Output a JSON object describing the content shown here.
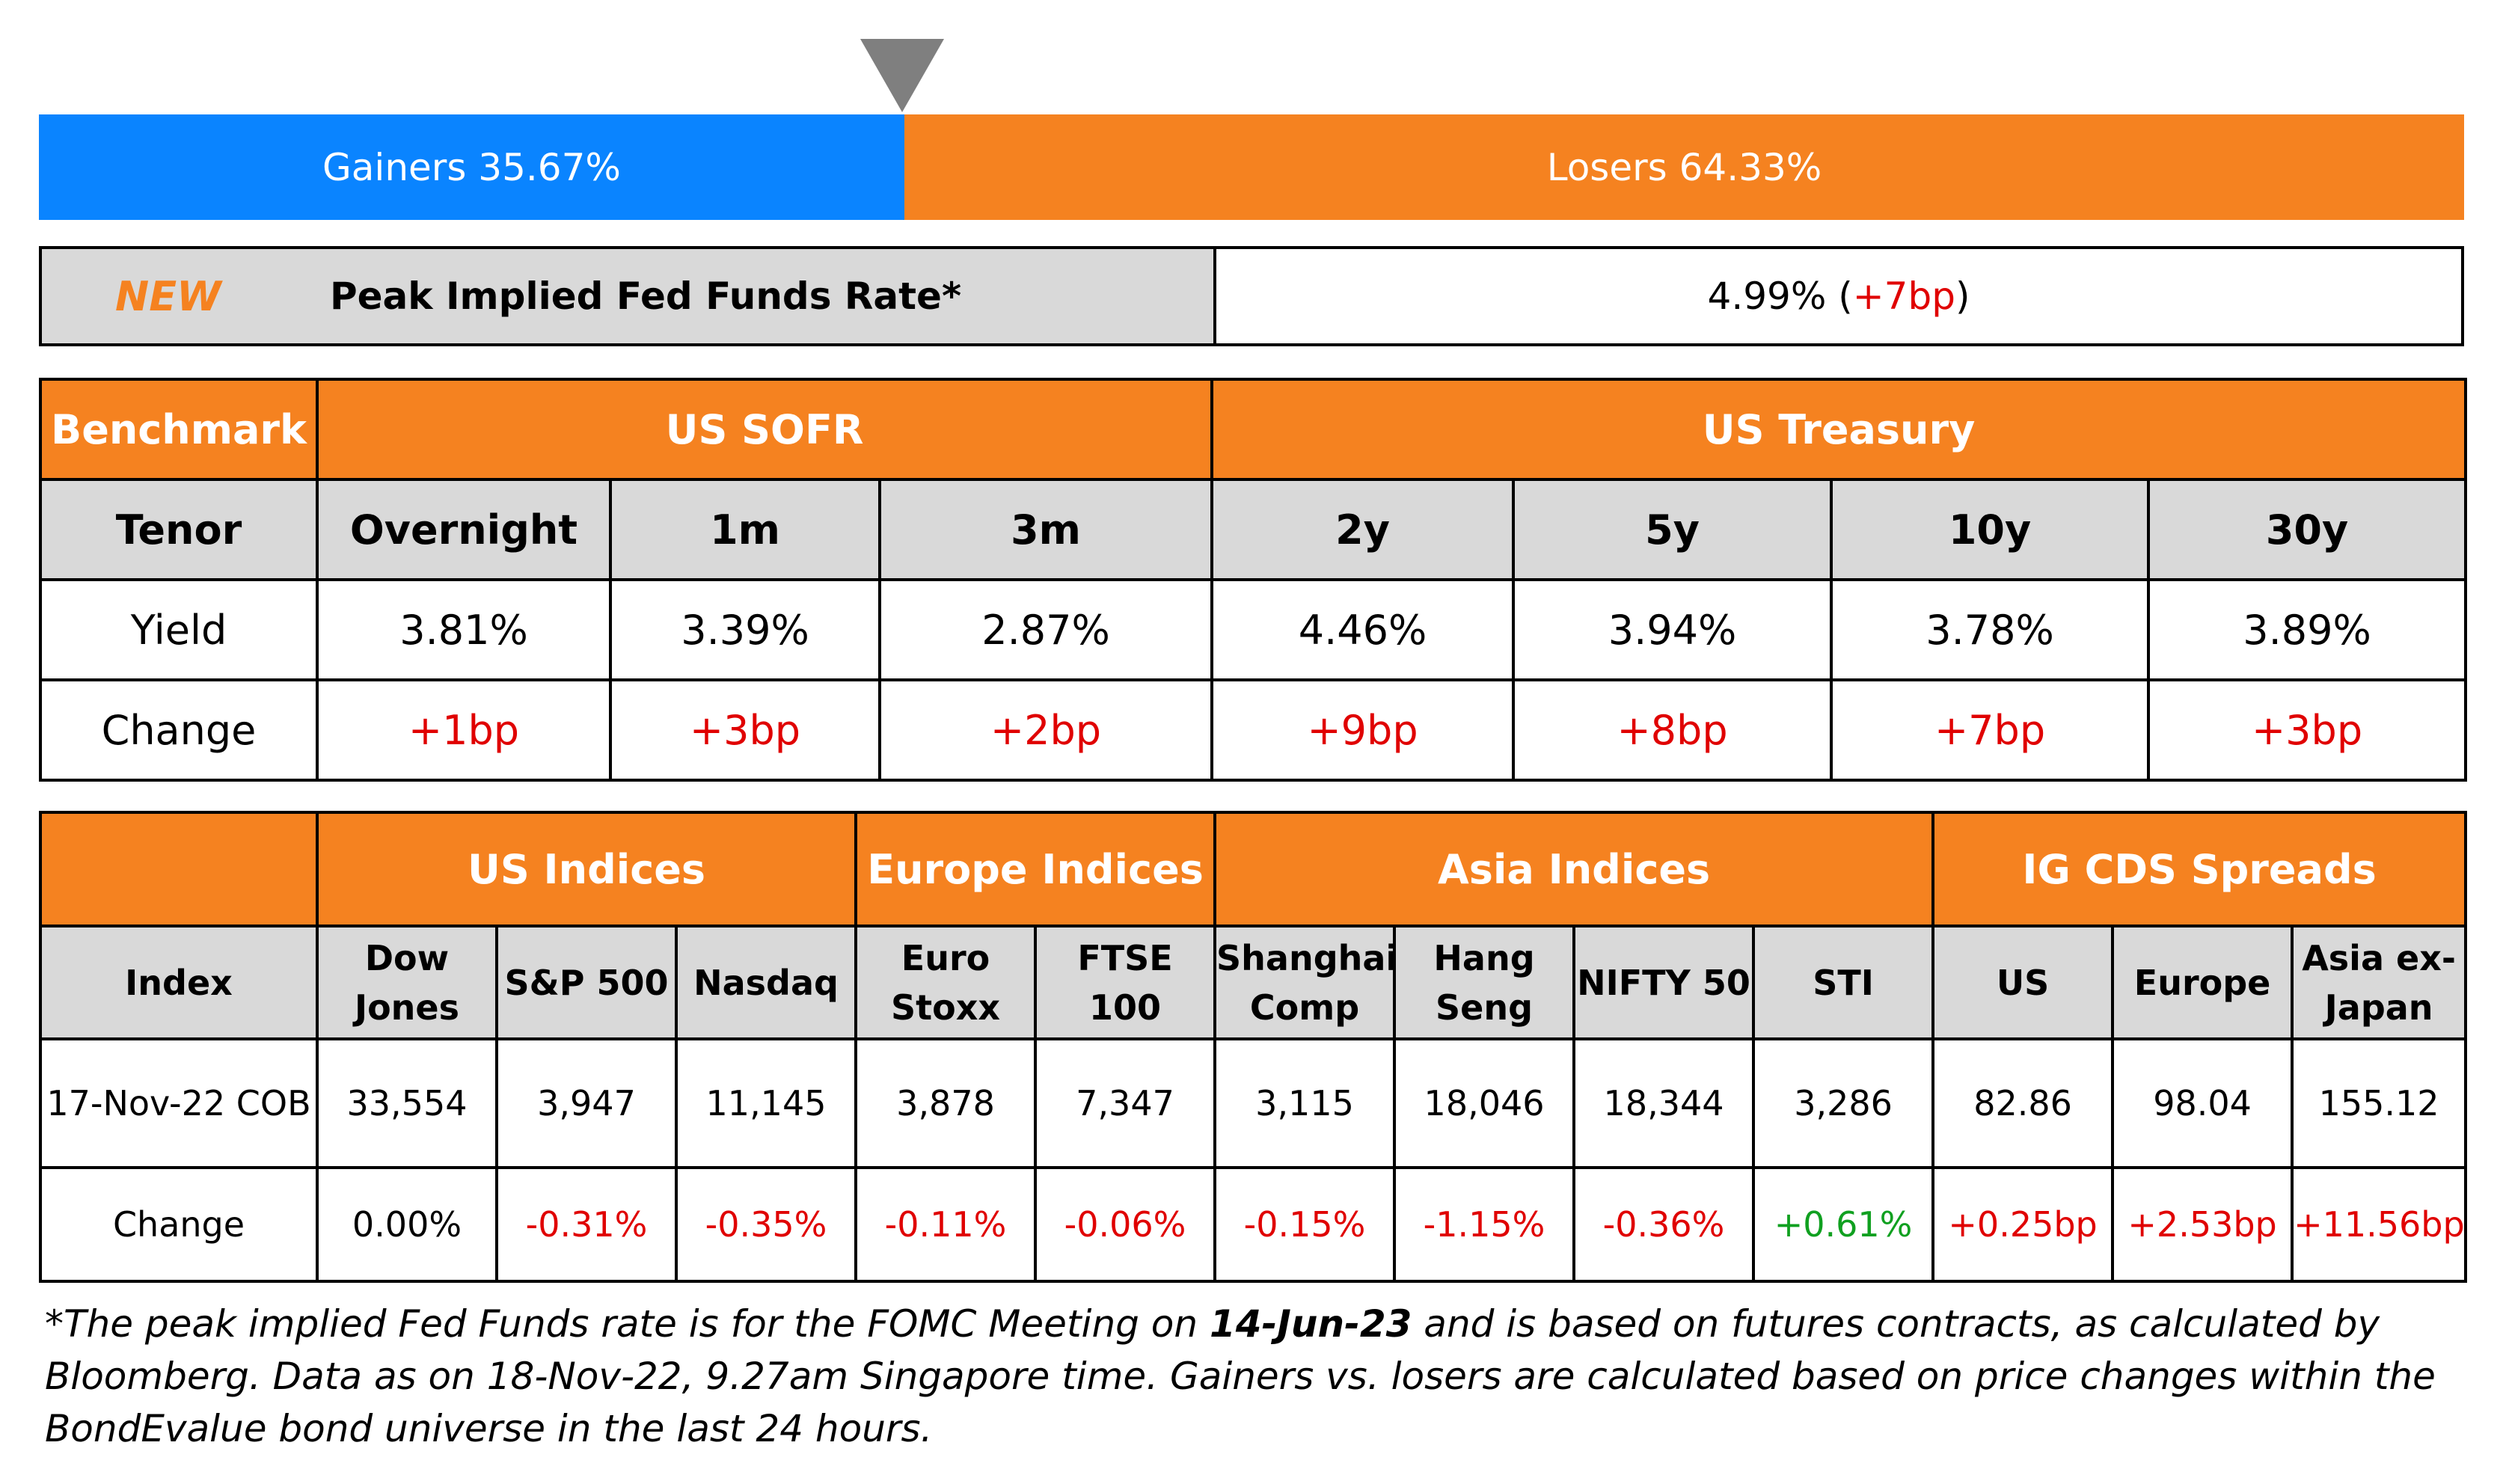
{
  "gainers_losers": {
    "gainers_label": "Gainers 35.67%",
    "losers_label": "Losers 64.33%",
    "gainers_pct": 35.67,
    "losers_pct": 64.33,
    "gainers_color": "#0a84ff",
    "losers_color": "#f58220"
  },
  "peak": {
    "new_tag": "NEW",
    "label": "Peak Implied Fed Funds Rate*",
    "value": "4.99%",
    "change": "+7bp",
    "open_paren": " (",
    "close_paren": ")"
  },
  "rates": {
    "benchmark_label": "Benchmark",
    "group1": "US SOFR",
    "group2": "US Treasury",
    "tenor_label": "Tenor",
    "tenors": [
      "Overnight",
      "1m",
      "3m",
      "2y",
      "5y",
      "10y",
      "30y"
    ],
    "yield_label": "Yield",
    "yields": [
      "3.81%",
      "3.39%",
      "2.87%",
      "4.46%",
      "3.94%",
      "3.78%",
      "3.89%"
    ],
    "change_label": "Change",
    "changes": [
      "+1bp",
      "+3bp",
      "+2bp",
      "+9bp",
      "+8bp",
      "+7bp",
      "+3bp"
    ]
  },
  "indices": {
    "groups": [
      "US Indices",
      "Europe Indices",
      "Asia Indices",
      "IG CDS Spreads"
    ],
    "index_label": "Index",
    "names": [
      {
        "l1": "Dow",
        "l2": "Jones"
      },
      {
        "l1": "S&P 500",
        "l2": ""
      },
      {
        "l1": "Nasdaq",
        "l2": ""
      },
      {
        "l1": "Euro",
        "l2": "Stoxx"
      },
      {
        "l1": "FTSE 100",
        "l2": ""
      },
      {
        "l1": "Shanghai",
        "l2": "Comp"
      },
      {
        "l1": "Hang",
        "l2": "Seng"
      },
      {
        "l1": "NIFTY 50",
        "l2": ""
      },
      {
        "l1": "STI",
        "l2": ""
      },
      {
        "l1": "US",
        "l2": ""
      },
      {
        "l1": "Europe",
        "l2": ""
      },
      {
        "l1": "Asia ex-",
        "l2": "Japan"
      }
    ],
    "date_label": "17-Nov-22 COB",
    "values": [
      "33,554",
      "3,947",
      "11,145",
      "3,878",
      "7,347",
      "3,115",
      "18,046",
      "18,344",
      "3,286",
      "82.86",
      "98.04",
      "155.12"
    ],
    "change_label": "Change",
    "changes": [
      "0.00%",
      "-0.31%",
      "-0.35%",
      "-0.11%",
      "-0.06%",
      "-0.15%",
      "-1.15%",
      "-0.36%",
      "+0.61%",
      "+0.25bp",
      "+2.53bp",
      "+11.56bp"
    ],
    "change_colors": [
      "#000000",
      "#e00000",
      "#e00000",
      "#e00000",
      "#e00000",
      "#e00000",
      "#e00000",
      "#e00000",
      "#10a020",
      "#e00000",
      "#e00000",
      "#e00000"
    ]
  },
  "footnote": {
    "part1": "*The peak implied Fed Funds rate is for the FOMC Meeting on ",
    "date": "14-Jun-23",
    "part2": " and is based on futures contracts, as calculated by Bloomberg. Data as on 18-Nov-22, 9.27am Singapore time. Gainers vs. losers are calculated based on price changes within the BondEvalue bond universe in the last 24 hours."
  }
}
